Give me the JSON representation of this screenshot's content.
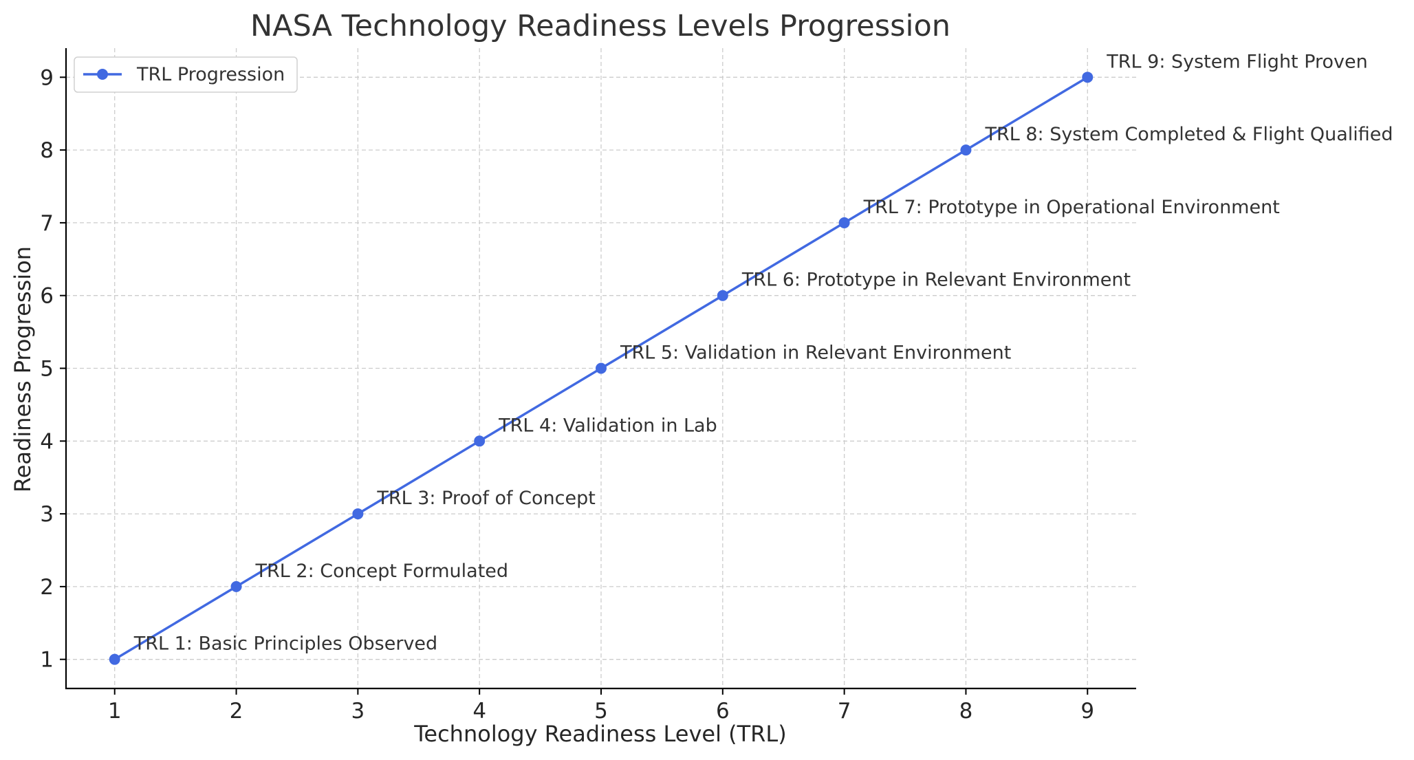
{
  "chart_data": {
    "type": "line",
    "title": "NASA Technology Readiness Levels Progression",
    "xlabel": "Technology Readiness Level (TRL)",
    "ylabel": "Readiness Progression",
    "xlim": [
      0.6,
      9.4
    ],
    "ylim": [
      0.6,
      9.4
    ],
    "x_ticks": [
      "1",
      "2",
      "3",
      "4",
      "5",
      "6",
      "7",
      "8",
      "9"
    ],
    "y_ticks": [
      "1",
      "2",
      "3",
      "4",
      "5",
      "6",
      "7",
      "8",
      "9"
    ],
    "grid": true,
    "legend_position": "top-left",
    "series": [
      {
        "name": "TRL Progression",
        "color": "#4169E1",
        "marker": "circle",
        "x": [
          1,
          2,
          3,
          4,
          5,
          6,
          7,
          8,
          9
        ],
        "y": [
          1,
          2,
          3,
          4,
          5,
          6,
          7,
          8,
          9
        ]
      }
    ],
    "annotations": [
      "TRL 1: Basic Principles Observed",
      "TRL 2: Concept Formulated",
      "TRL 3: Proof of Concept",
      "TRL 4: Validation in Lab",
      "TRL 5: Validation in Relevant Environment",
      "TRL 6: Prototype in Relevant Environment",
      "TRL 7: Prototype in Operational Environment",
      "TRL 8: System Completed & Flight Qualified",
      "TRL 9: System Flight Proven"
    ]
  }
}
